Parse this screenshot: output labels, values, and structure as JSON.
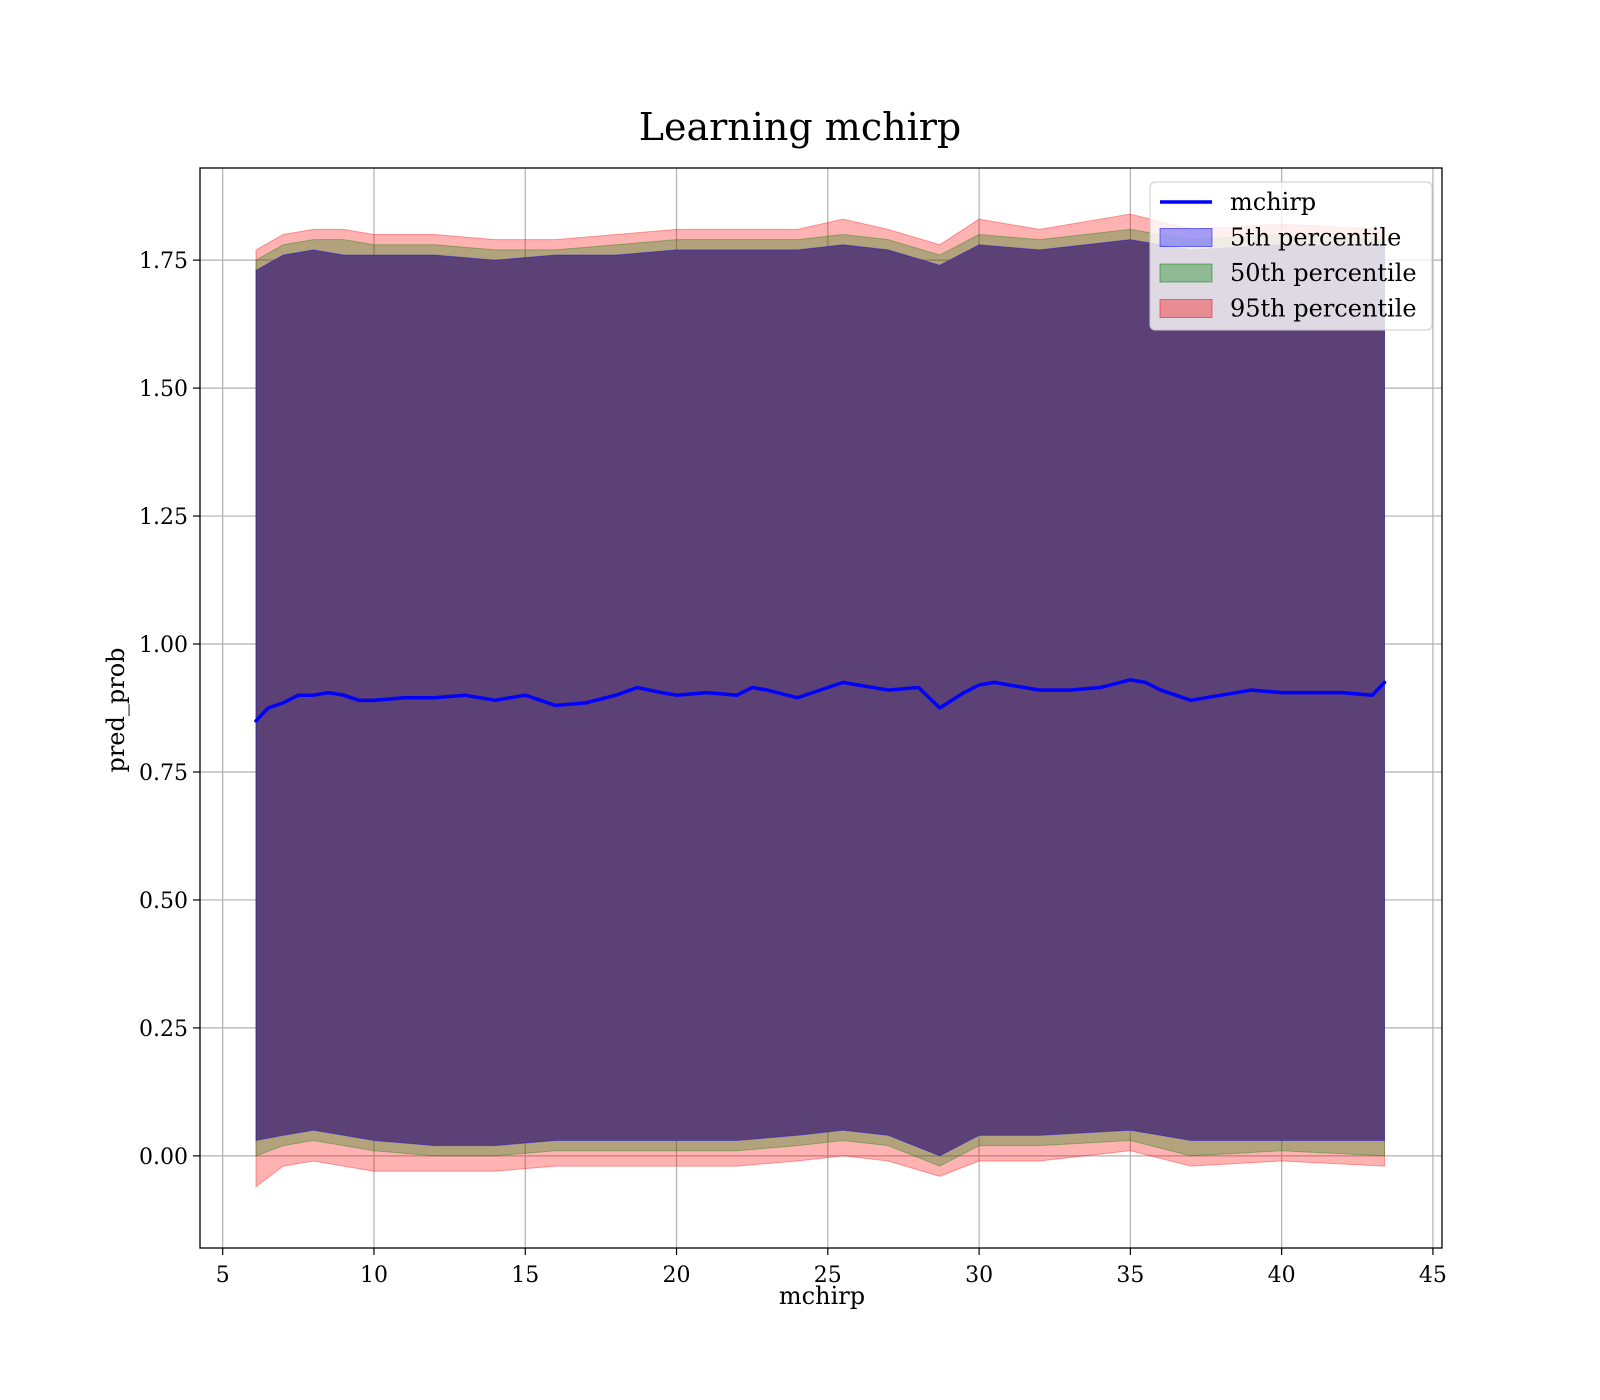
{
  "chart_data": {
    "type": "line",
    "title": "Learning mchirp",
    "xlabel": "mchirp",
    "ylabel": "pred_prob",
    "xlim": [
      4.25,
      45.3
    ],
    "ylim": [
      -0.18,
      1.93
    ],
    "x_ticks": [
      5,
      10,
      15,
      20,
      25,
      30,
      35,
      40,
      45
    ],
    "x_tick_labels": [
      "5",
      "10",
      "15",
      "20",
      "25",
      "30",
      "35",
      "40",
      "45"
    ],
    "y_ticks": [
      0.0,
      0.25,
      0.5,
      0.75,
      1.0,
      1.25,
      1.5,
      1.75
    ],
    "y_tick_labels": [
      "0.00",
      "0.25",
      "0.50",
      "0.75",
      "1.00",
      "1.25",
      "1.50",
      "1.75"
    ],
    "grid": true,
    "legend_position": "top-right",
    "colors": {
      "line": "#0000ff",
      "band_5th": "#0000ff",
      "band_50th": "#008000",
      "band_95th": "#ff0000",
      "body_fill": "#a0707a"
    },
    "series": [
      {
        "name": "mchirp",
        "kind": "line",
        "x": [
          6.1,
          6.5,
          7.0,
          7.5,
          8.0,
          8.5,
          9.0,
          9.5,
          10.0,
          11.0,
          12.0,
          13.0,
          14.0,
          15.0,
          16.0,
          17.0,
          18.0,
          18.7,
          19.5,
          20.0,
          21.0,
          22.0,
          22.5,
          23.0,
          24.0,
          25.0,
          25.5,
          26.0,
          27.0,
          28.0,
          28.7,
          29.5,
          30.0,
          30.5,
          31.0,
          32.0,
          33.0,
          34.0,
          35.0,
          35.5,
          36.0,
          37.0,
          38.0,
          39.0,
          40.0,
          41.0,
          42.0,
          43.0,
          43.4
        ],
        "y": [
          0.85,
          0.875,
          0.885,
          0.9,
          0.9,
          0.905,
          0.9,
          0.89,
          0.89,
          0.895,
          0.895,
          0.9,
          0.89,
          0.9,
          0.88,
          0.885,
          0.9,
          0.915,
          0.905,
          0.9,
          0.905,
          0.9,
          0.915,
          0.91,
          0.895,
          0.915,
          0.925,
          0.92,
          0.91,
          0.915,
          0.875,
          0.905,
          0.92,
          0.925,
          0.92,
          0.91,
          0.91,
          0.915,
          0.93,
          0.925,
          0.91,
          0.89,
          0.9,
          0.91,
          0.905,
          0.905,
          0.905,
          0.9,
          0.925
        ]
      },
      {
        "name": "5th percentile",
        "kind": "band",
        "x": [
          6.1,
          7.0,
          8.0,
          9.0,
          10.0,
          12.0,
          14.0,
          16.0,
          18.0,
          20.0,
          22.0,
          24.0,
          25.5,
          27.0,
          28.7,
          30.0,
          32.0,
          35.0,
          37.0,
          40.0,
          43.4
        ],
        "upper": [
          1.73,
          1.76,
          1.77,
          1.76,
          1.76,
          1.76,
          1.75,
          1.76,
          1.76,
          1.77,
          1.77,
          1.77,
          1.78,
          1.77,
          1.74,
          1.78,
          1.77,
          1.79,
          1.77,
          1.78,
          1.78
        ],
        "lower": [
          0.03,
          0.04,
          0.05,
          0.04,
          0.03,
          0.02,
          0.02,
          0.03,
          0.03,
          0.03,
          0.03,
          0.04,
          0.05,
          0.04,
          0.0,
          0.04,
          0.04,
          0.05,
          0.03,
          0.03,
          0.03
        ]
      },
      {
        "name": "50th percentile",
        "kind": "band",
        "x": [
          6.1,
          7.0,
          8.0,
          9.0,
          10.0,
          12.0,
          14.0,
          16.0,
          18.0,
          20.0,
          22.0,
          24.0,
          25.5,
          27.0,
          28.7,
          30.0,
          32.0,
          35.0,
          37.0,
          40.0,
          43.4
        ],
        "upper": [
          1.75,
          1.78,
          1.79,
          1.79,
          1.78,
          1.78,
          1.77,
          1.77,
          1.78,
          1.79,
          1.79,
          1.79,
          1.8,
          1.79,
          1.76,
          1.8,
          1.79,
          1.81,
          1.79,
          1.8,
          1.79
        ],
        "lower": [
          0.0,
          0.02,
          0.03,
          0.02,
          0.01,
          0.0,
          0.0,
          0.01,
          0.01,
          0.01,
          0.01,
          0.02,
          0.03,
          0.02,
          -0.02,
          0.02,
          0.02,
          0.03,
          0.0,
          0.01,
          0.0
        ]
      },
      {
        "name": "95th percentile",
        "kind": "band",
        "x": [
          6.1,
          7.0,
          8.0,
          9.0,
          10.0,
          12.0,
          14.0,
          16.0,
          18.0,
          20.0,
          22.0,
          24.0,
          25.5,
          27.0,
          28.7,
          30.0,
          32.0,
          35.0,
          37.0,
          40.0,
          43.4
        ],
        "upper": [
          1.77,
          1.8,
          1.81,
          1.81,
          1.8,
          1.8,
          1.79,
          1.79,
          1.8,
          1.81,
          1.81,
          1.81,
          1.83,
          1.81,
          1.78,
          1.83,
          1.81,
          1.84,
          1.81,
          1.82,
          1.81
        ],
        "lower": [
          -0.06,
          -0.02,
          -0.01,
          -0.02,
          -0.03,
          -0.03,
          -0.03,
          -0.02,
          -0.02,
          -0.02,
          -0.02,
          -0.01,
          0.0,
          -0.01,
          -0.04,
          -0.01,
          -0.01,
          0.01,
          -0.02,
          -0.01,
          -0.02
        ]
      }
    ]
  }
}
